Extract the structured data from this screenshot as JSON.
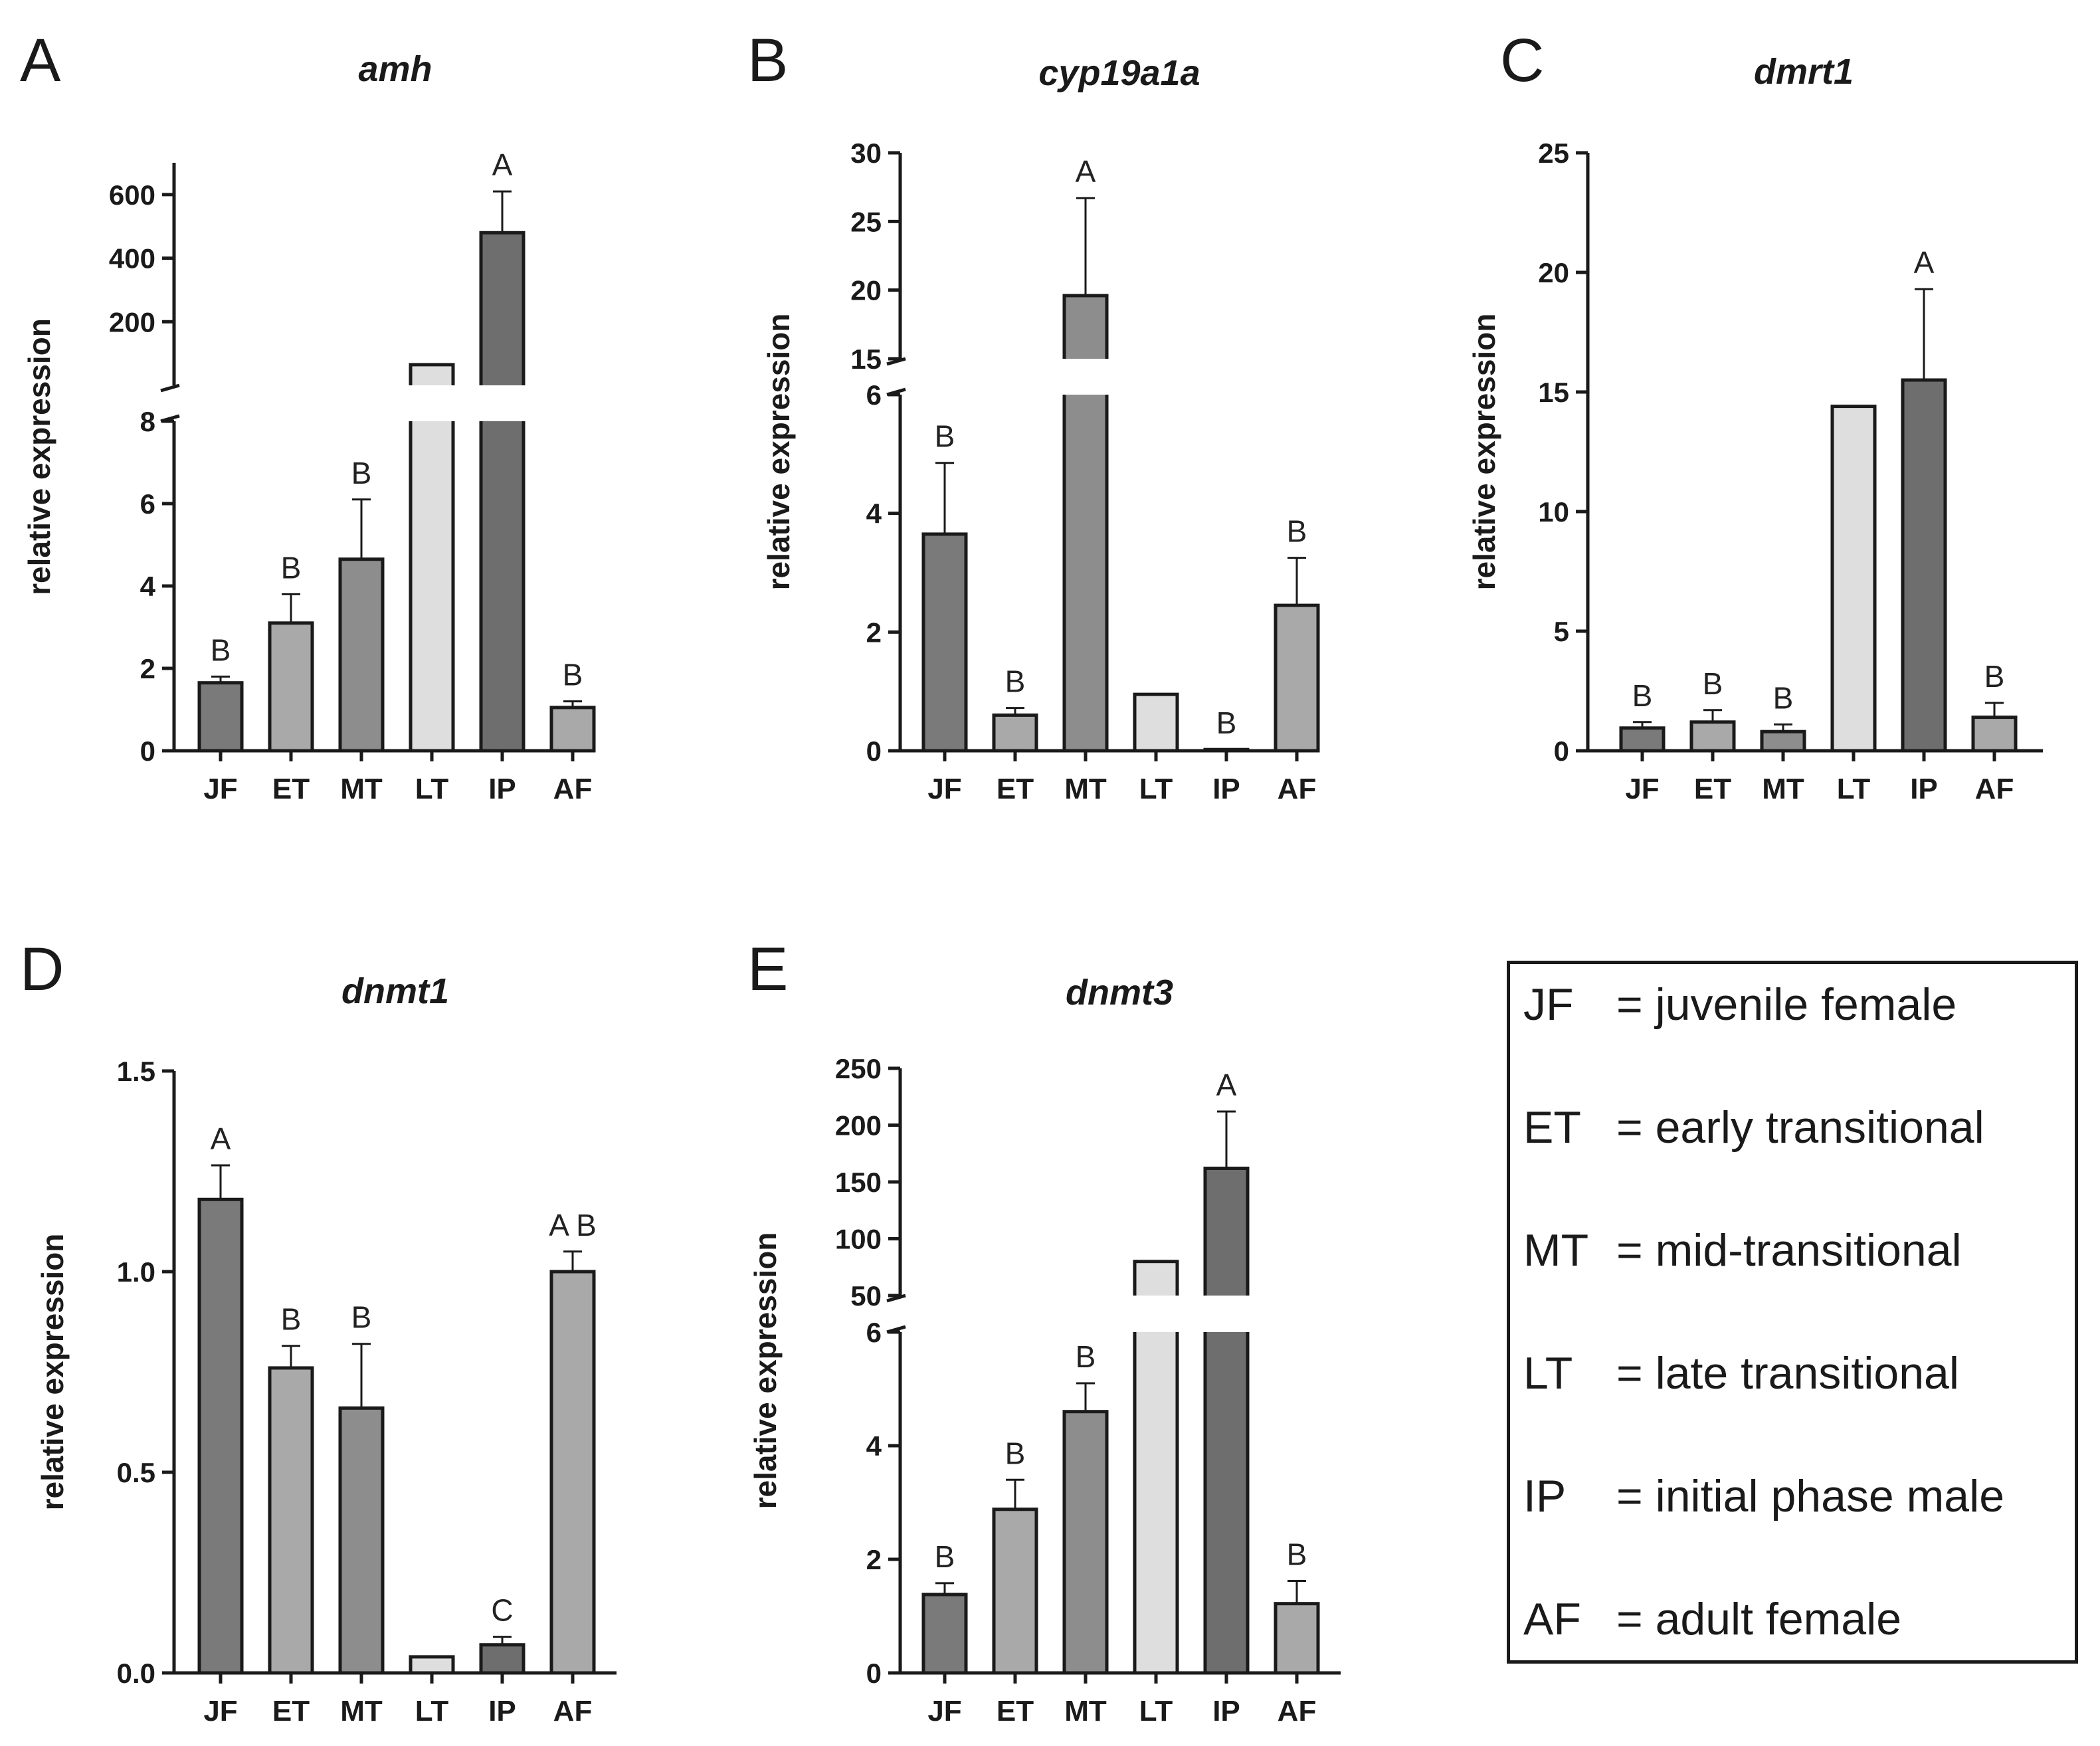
{
  "chart_data": [
    {
      "panel": "A",
      "type": "bar",
      "title": "amh",
      "ylabel": "relative expression",
      "categories": [
        "JF",
        "ET",
        "MT",
        "LT",
        "IP",
        "AF"
      ],
      "values": [
        1.65,
        3.1,
        4.65,
        65,
        480,
        1.05
      ],
      "errors": [
        0.15,
        0.7,
        1.45,
        0,
        130,
        0.15
      ],
      "letters": [
        "B",
        "B",
        "B",
        "",
        "A",
        "B"
      ],
      "colors": [
        "#7a7a7a",
        "#a9a9a9",
        "#8d8d8d",
        "#dedede",
        "#6e6e6e",
        "#a9a9a9"
      ],
      "axis": {
        "lower": {
          "range": [
            0,
            8
          ],
          "ticks": [
            0,
            2,
            4,
            6,
            8
          ],
          "tick_labels": [
            "0",
            "2",
            "4",
            "6",
            "8"
          ]
        },
        "upper": {
          "range": [
            0,
            700
          ],
          "ticks": [
            200,
            400,
            600
          ],
          "tick_labels": [
            "200",
            "400",
            "600"
          ]
        }
      }
    },
    {
      "panel": "B",
      "type": "bar",
      "title": "cyp19a1a",
      "ylabel": "relative expression",
      "categories": [
        "JF",
        "ET",
        "MT",
        "LT",
        "IP",
        "AF"
      ],
      "values": [
        3.65,
        0.6,
        19.6,
        0.95,
        0.02,
        2.45
      ],
      "errors": [
        1.2,
        0.12,
        7.1,
        0,
        0,
        0.8
      ],
      "letters": [
        "B",
        "B",
        "A",
        "",
        "B",
        "B"
      ],
      "colors": [
        "#7a7a7a",
        "#a9a9a9",
        "#8d8d8d",
        "#dedede",
        "#6e6e6e",
        "#a9a9a9"
      ],
      "axis": {
        "lower": {
          "range": [
            0,
            6
          ],
          "ticks": [
            0,
            2,
            4,
            6
          ],
          "tick_labels": [
            "0",
            "2",
            "4",
            "6"
          ]
        },
        "upper": {
          "range": [
            15,
            30
          ],
          "ticks": [
            15,
            20,
            25,
            30
          ],
          "tick_labels": [
            "15",
            "20",
            "25",
            "30"
          ]
        }
      }
    },
    {
      "panel": "C",
      "type": "bar",
      "title": "dmrt1",
      "ylabel": "relative expression",
      "categories": [
        "JF",
        "ET",
        "MT",
        "LT",
        "IP",
        "AF"
      ],
      "values": [
        0.95,
        1.2,
        0.8,
        14.4,
        15.5,
        1.4
      ],
      "errors": [
        0.25,
        0.5,
        0.3,
        0,
        3.8,
        0.6
      ],
      "letters": [
        "B",
        "B",
        "B",
        "",
        "A",
        "B"
      ],
      "colors": [
        "#7a7a7a",
        "#a9a9a9",
        "#8d8d8d",
        "#dedede",
        "#6e6e6e",
        "#a9a9a9"
      ],
      "axis": {
        "range": [
          0,
          25
        ],
        "ticks": [
          0,
          5,
          10,
          15,
          20,
          25
        ],
        "tick_labels": [
          "0",
          "5",
          "10",
          "15",
          "20",
          "25"
        ]
      }
    },
    {
      "panel": "D",
      "type": "bar",
      "title": "dnmt1",
      "ylabel": "relative expression",
      "categories": [
        "JF",
        "ET",
        "MT",
        "LT",
        "IP",
        "AF"
      ],
      "values": [
        1.18,
        0.76,
        0.66,
        0.04,
        0.07,
        1.0
      ],
      "errors": [
        0.085,
        0.055,
        0.16,
        0,
        0.02,
        0.05
      ],
      "letters": [
        "A",
        "B",
        "B",
        "",
        "C",
        "A B"
      ],
      "colors": [
        "#7a7a7a",
        "#a9a9a9",
        "#8d8d8d",
        "#dedede",
        "#6e6e6e",
        "#a9a9a9"
      ],
      "axis": {
        "range": [
          0,
          1.5
        ],
        "ticks": [
          0,
          0.5,
          1.0,
          1.5
        ],
        "tick_labels": [
          "0.0",
          "0.5",
          "1.0",
          "1.5"
        ]
      }
    },
    {
      "panel": "E",
      "type": "bar",
      "title": "dnmt3",
      "ylabel": "relative expression",
      "categories": [
        "JF",
        "ET",
        "MT",
        "LT",
        "IP",
        "AF"
      ],
      "values": [
        1.38,
        2.88,
        4.6,
        80,
        162,
        1.22
      ],
      "errors": [
        0.2,
        0.52,
        0.5,
        0,
        50,
        0.4
      ],
      "letters": [
        "B",
        "B",
        "B",
        "",
        "A",
        "B"
      ],
      "colors": [
        "#7a7a7a",
        "#a9a9a9",
        "#8d8d8d",
        "#dedede",
        "#6e6e6e",
        "#a9a9a9"
      ],
      "axis": {
        "lower": {
          "range": [
            0,
            6
          ],
          "ticks": [
            0,
            2,
            4,
            6
          ],
          "tick_labels": [
            "0",
            "2",
            "4",
            "6"
          ]
        },
        "upper": {
          "range": [
            50,
            250
          ],
          "ticks": [
            50,
            100,
            150,
            200,
            250
          ],
          "tick_labels": [
            "50",
            "100",
            "150",
            "200",
            "250"
          ]
        }
      }
    }
  ],
  "legend": {
    "items": [
      {
        "abbr": "JF",
        "desc": "= juvenile female"
      },
      {
        "abbr": "ET",
        "desc": "= early transitional"
      },
      {
        "abbr": "MT",
        "desc": "= mid-transitional"
      },
      {
        "abbr": "LT",
        "desc": "= late transitional"
      },
      {
        "abbr": "IP",
        "desc": "= initial phase male"
      },
      {
        "abbr": "AF",
        "desc": "= adult female"
      }
    ]
  }
}
